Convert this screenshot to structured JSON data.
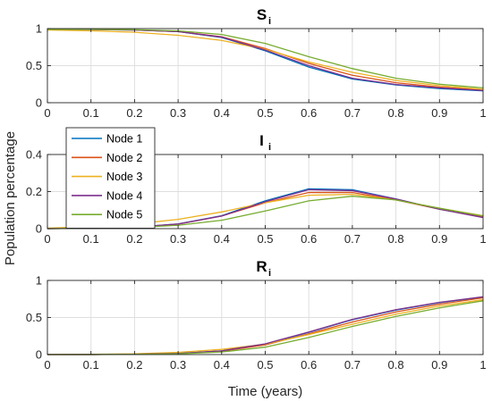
{
  "chart_data": [
    {
      "type": "line",
      "title": "S",
      "title_subscript": "i",
      "xlim": [
        0,
        1
      ],
      "ylim": [
        0,
        1
      ],
      "xticks": [
        "0",
        "0.1",
        "0.2",
        "0.3",
        "0.4",
        "0.5",
        "0.6",
        "0.7",
        "0.8",
        "0.9",
        "1"
      ],
      "yticks": [
        "0",
        "0.5",
        "1"
      ],
      "grid": true,
      "x": [
        0,
        0.1,
        0.2,
        0.3,
        0.4,
        0.5,
        0.6,
        0.7,
        0.8,
        0.9,
        1.0
      ],
      "series": [
        {
          "name": "Node 1",
          "color": "#0072BD",
          "values": [
            0.99,
            0.988,
            0.98,
            0.96,
            0.88,
            0.7,
            0.48,
            0.32,
            0.24,
            0.19,
            0.16
          ]
        },
        {
          "name": "Node 2",
          "color": "#D95319",
          "values": [
            0.99,
            0.988,
            0.98,
            0.96,
            0.89,
            0.73,
            0.53,
            0.37,
            0.27,
            0.21,
            0.17
          ]
        },
        {
          "name": "Node 3",
          "color": "#EDB120",
          "values": [
            0.98,
            0.97,
            0.95,
            0.91,
            0.84,
            0.72,
            0.55,
            0.41,
            0.3,
            0.23,
            0.18
          ]
        },
        {
          "name": "Node 4",
          "color": "#7E2F8E",
          "values": [
            0.99,
            0.988,
            0.98,
            0.96,
            0.885,
            0.71,
            0.5,
            0.33,
            0.245,
            0.2,
            0.165
          ]
        },
        {
          "name": "Node 5",
          "color": "#77AC30",
          "values": [
            0.99,
            0.989,
            0.985,
            0.97,
            0.92,
            0.8,
            0.62,
            0.46,
            0.33,
            0.25,
            0.2
          ]
        }
      ]
    },
    {
      "type": "line",
      "title": "I",
      "title_subscript": "i",
      "xlim": [
        0,
        1
      ],
      "ylim": [
        0,
        0.4
      ],
      "xticks": [
        "0",
        "0.1",
        "0.2",
        "0.3",
        "0.4",
        "0.5",
        "0.6",
        "0.7",
        "0.8",
        "0.9",
        "1"
      ],
      "yticks": [
        "0",
        "0.2",
        "0.4"
      ],
      "grid": true,
      "x": [
        0,
        0.1,
        0.2,
        0.3,
        0.4,
        0.5,
        0.6,
        0.7,
        0.8,
        0.9,
        1.0
      ],
      "series": [
        {
          "name": "Node 1",
          "color": "#0072BD",
          "values": [
            0.0,
            0.002,
            0.008,
            0.025,
            0.07,
            0.15,
            0.215,
            0.21,
            0.16,
            0.105,
            0.062
          ]
        },
        {
          "name": "Node 2",
          "color": "#D95319",
          "values": [
            0.0,
            0.002,
            0.008,
            0.024,
            0.068,
            0.14,
            0.195,
            0.195,
            0.155,
            0.105,
            0.063
          ]
        },
        {
          "name": "Node 3",
          "color": "#EDB120",
          "values": [
            0.003,
            0.01,
            0.025,
            0.05,
            0.09,
            0.14,
            0.18,
            0.185,
            0.155,
            0.11,
            0.07
          ]
        },
        {
          "name": "Node 4",
          "color": "#7E2F8E",
          "values": [
            0.0,
            0.002,
            0.008,
            0.025,
            0.068,
            0.145,
            0.21,
            0.205,
            0.16,
            0.105,
            0.06
          ]
        },
        {
          "name": "Node 5",
          "color": "#77AC30",
          "values": [
            0.0,
            0.002,
            0.006,
            0.018,
            0.045,
            0.095,
            0.15,
            0.175,
            0.155,
            0.11,
            0.068
          ]
        }
      ]
    },
    {
      "type": "line",
      "title": "R",
      "title_subscript": "i",
      "xlim": [
        0,
        1
      ],
      "ylim": [
        0,
        1
      ],
      "xticks": [
        "0",
        "0.1",
        "0.2",
        "0.3",
        "0.4",
        "0.5",
        "0.6",
        "0.7",
        "0.8",
        "0.9",
        "1"
      ],
      "yticks": [
        "0",
        "0.5",
        "1"
      ],
      "grid": true,
      "xlabel": "Time (years)",
      "x": [
        0,
        0.1,
        0.2,
        0.3,
        0.4,
        0.5,
        0.6,
        0.7,
        0.8,
        0.9,
        1.0
      ],
      "series": [
        {
          "name": "Node 1",
          "color": "#0072BD",
          "values": [
            0.0,
            0.001,
            0.004,
            0.015,
            0.05,
            0.14,
            0.3,
            0.47,
            0.6,
            0.7,
            0.775
          ]
        },
        {
          "name": "Node 2",
          "color": "#D95319",
          "values": [
            0.0,
            0.001,
            0.004,
            0.014,
            0.046,
            0.13,
            0.28,
            0.44,
            0.575,
            0.68,
            0.765
          ]
        },
        {
          "name": "Node 3",
          "color": "#EDB120",
          "values": [
            0.0,
            0.003,
            0.01,
            0.03,
            0.07,
            0.14,
            0.27,
            0.41,
            0.545,
            0.655,
            0.74
          ]
        },
        {
          "name": "Node 4",
          "color": "#7E2F8E",
          "values": [
            0.0,
            0.001,
            0.004,
            0.015,
            0.05,
            0.145,
            0.305,
            0.475,
            0.605,
            0.705,
            0.78
          ]
        },
        {
          "name": "Node 5",
          "color": "#77AC30",
          "values": [
            0.0,
            0.001,
            0.003,
            0.01,
            0.035,
            0.1,
            0.23,
            0.38,
            0.515,
            0.63,
            0.725
          ]
        }
      ]
    }
  ],
  "shared": {
    "ylabel": "Population percentage",
    "legend_location": "left, over middle panel"
  }
}
